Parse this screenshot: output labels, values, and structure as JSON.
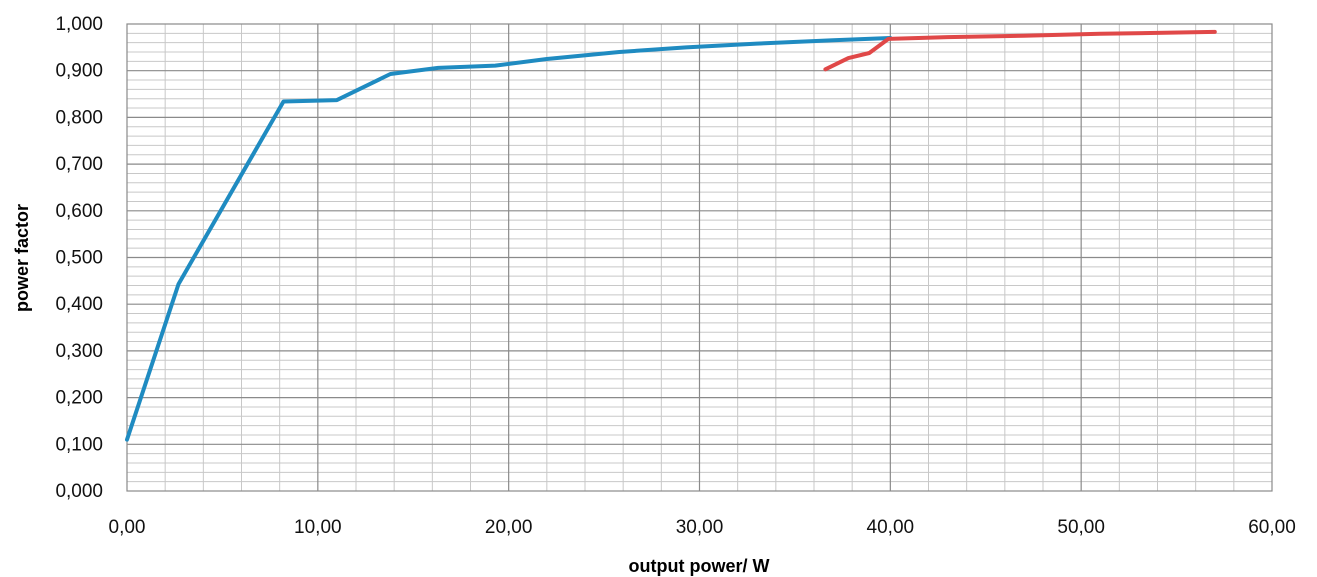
{
  "chart_data": {
    "type": "line",
    "title": "",
    "xlabel": "output power/ W",
    "ylabel": "power factor",
    "xlim": [
      0,
      60
    ],
    "ylim": [
      0,
      1
    ],
    "grid": true,
    "legend": "none",
    "x_ticks": [
      "0,00",
      "10,00",
      "20,00",
      "30,00",
      "40,00",
      "50,00",
      "60,00"
    ],
    "y_ticks": [
      "0,000",
      "0,100",
      "0,200",
      "0,300",
      "0,400",
      "0,500",
      "0,600",
      "0,700",
      "0,800",
      "0,900",
      "1,000"
    ],
    "series": [
      {
        "color": "#1f8bc1",
        "points": [
          [
            0.0,
            0.11
          ],
          [
            2.7,
            0.443
          ],
          [
            8.2,
            0.834
          ],
          [
            11.0,
            0.837
          ],
          [
            13.8,
            0.893
          ],
          [
            16.3,
            0.906
          ],
          [
            19.3,
            0.911
          ],
          [
            22.0,
            0.925
          ],
          [
            25.8,
            0.94
          ],
          [
            29.3,
            0.95
          ],
          [
            33.0,
            0.958
          ],
          [
            37.0,
            0.965
          ],
          [
            40.0,
            0.97
          ]
        ]
      },
      {
        "color": "#e04848",
        "points": [
          [
            36.6,
            0.903
          ],
          [
            37.8,
            0.927
          ],
          [
            38.9,
            0.938
          ],
          [
            39.9,
            0.968
          ],
          [
            43.0,
            0.972
          ],
          [
            47.0,
            0.975
          ],
          [
            51.0,
            0.979
          ],
          [
            54.0,
            0.981
          ],
          [
            57.0,
            0.983
          ]
        ]
      }
    ]
  }
}
